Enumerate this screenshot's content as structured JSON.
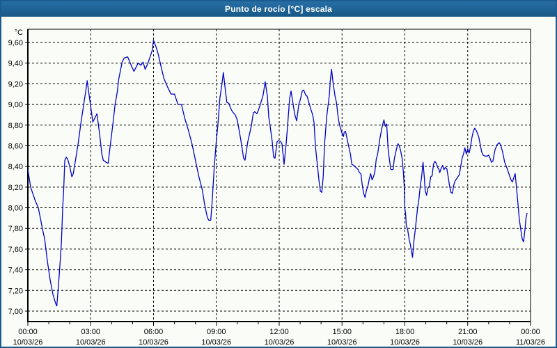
{
  "window": {
    "title": "Punto de rocío [°C] escala"
  },
  "colors": {
    "titlebar": "#1d6398",
    "titlebar_text": "#ffffff",
    "window_bg": "#fafdf7",
    "window_border": "#1a5c90",
    "grid": "#000000",
    "axis": "#000000",
    "line": "#0000c8",
    "label_text": "#000000"
  },
  "chart_data": {
    "type": "line",
    "title": "Punto de rocío [°C] escala",
    "xlabel": "",
    "ylabel": "°C",
    "y_axis_unit": "°C",
    "grid": "dashed",
    "legend": "none",
    "ylim": [
      6.9,
      9.73
    ],
    "x_range_minutes": [
      0,
      1440
    ],
    "x_minor_tick_minutes": 60,
    "y_ticks": [
      {
        "value": 9.6,
        "label": "9,60"
      },
      {
        "value": 9.4,
        "label": "9,40"
      },
      {
        "value": 9.2,
        "label": "9,20"
      },
      {
        "value": 9.0,
        "label": "9,00"
      },
      {
        "value": 8.8,
        "label": "8,80"
      },
      {
        "value": 8.6,
        "label": "8,60"
      },
      {
        "value": 8.4,
        "label": "8,40"
      },
      {
        "value": 8.2,
        "label": "8,20"
      },
      {
        "value": 8.0,
        "label": "8,00"
      },
      {
        "value": 7.8,
        "label": "7,80"
      },
      {
        "value": 7.6,
        "label": "7,60"
      },
      {
        "value": 7.4,
        "label": "7,40"
      },
      {
        "value": 7.2,
        "label": "7,20"
      },
      {
        "value": 7.0,
        "label": "7,00"
      }
    ],
    "x_ticks": [
      {
        "minutes": 0,
        "time": "00:00",
        "date": "10/03/26"
      },
      {
        "minutes": 180,
        "time": "03:00",
        "date": "10/03/26"
      },
      {
        "minutes": 360,
        "time": "06:00",
        "date": "10/03/26"
      },
      {
        "minutes": 540,
        "time": "09:00",
        "date": "10/03/26"
      },
      {
        "minutes": 720,
        "time": "12:00",
        "date": "10/03/26"
      },
      {
        "minutes": 900,
        "time": "15:00",
        "date": "10/03/26"
      },
      {
        "minutes": 1080,
        "time": "18:00",
        "date": "10/03/26"
      },
      {
        "minutes": 1260,
        "time": "21:00",
        "date": "10/03/26"
      },
      {
        "minutes": 1440,
        "time": "00:00",
        "date": "11/03/26"
      }
    ],
    "series": [
      {
        "name": "Punto de rocío [°C]",
        "points": [
          [
            0,
            8.37
          ],
          [
            8,
            8.2
          ],
          [
            20,
            8.08
          ],
          [
            30,
            8.0
          ],
          [
            36,
            7.9
          ],
          [
            42,
            7.79
          ],
          [
            48,
            7.7
          ],
          [
            56,
            7.48
          ],
          [
            64,
            7.3
          ],
          [
            72,
            7.16
          ],
          [
            80,
            7.07
          ],
          [
            83,
            7.05
          ],
          [
            88,
            7.26
          ],
          [
            92,
            7.45
          ],
          [
            96,
            7.65
          ],
          [
            100,
            8.0
          ],
          [
            103,
            8.2
          ],
          [
            106,
            8.46
          ],
          [
            110,
            8.49
          ],
          [
            114,
            8.47
          ],
          [
            120,
            8.4
          ],
          [
            126,
            8.3
          ],
          [
            130,
            8.33
          ],
          [
            136,
            8.45
          ],
          [
            144,
            8.62
          ],
          [
            152,
            8.82
          ],
          [
            160,
            9.0
          ],
          [
            166,
            9.13
          ],
          [
            170,
            9.23
          ],
          [
            176,
            9.08
          ],
          [
            180,
            8.98
          ],
          [
            186,
            8.83
          ],
          [
            192,
            8.87
          ],
          [
            198,
            8.91
          ],
          [
            206,
            8.7
          ],
          [
            212,
            8.52
          ],
          [
            216,
            8.46
          ],
          [
            224,
            8.44
          ],
          [
            230,
            8.43
          ],
          [
            236,
            8.6
          ],
          [
            244,
            8.82
          ],
          [
            250,
            9.0
          ],
          [
            256,
            9.12
          ],
          [
            260,
            9.24
          ],
          [
            270,
            9.41
          ],
          [
            276,
            9.45
          ],
          [
            286,
            9.46
          ],
          [
            296,
            9.38
          ],
          [
            304,
            9.32
          ],
          [
            316,
            9.4
          ],
          [
            324,
            9.38
          ],
          [
            330,
            9.41
          ],
          [
            336,
            9.34
          ],
          [
            344,
            9.4
          ],
          [
            350,
            9.46
          ],
          [
            356,
            9.52
          ],
          [
            360,
            9.62
          ],
          [
            368,
            9.55
          ],
          [
            374,
            9.48
          ],
          [
            380,
            9.39
          ],
          [
            390,
            9.25
          ],
          [
            400,
            9.17
          ],
          [
            410,
            9.1
          ],
          [
            420,
            9.1
          ],
          [
            430,
            9.0
          ],
          [
            440,
            9.0
          ],
          [
            450,
            8.86
          ],
          [
            460,
            8.75
          ],
          [
            470,
            8.62
          ],
          [
            480,
            8.46
          ],
          [
            490,
            8.3
          ],
          [
            500,
            8.17
          ],
          [
            506,
            8.04
          ],
          [
            514,
            7.91
          ],
          [
            518,
            7.88
          ],
          [
            524,
            7.88
          ],
          [
            528,
            8.06
          ],
          [
            534,
            8.39
          ],
          [
            540,
            8.66
          ],
          [
            544,
            8.79
          ],
          [
            550,
            9.06
          ],
          [
            556,
            9.2
          ],
          [
            560,
            9.31
          ],
          [
            566,
            9.13
          ],
          [
            570,
            9.02
          ],
          [
            576,
            9.01
          ],
          [
            580,
            8.97
          ],
          [
            586,
            8.93
          ],
          [
            594,
            8.9
          ],
          [
            600,
            8.85
          ],
          [
            610,
            8.66
          ],
          [
            618,
            8.48
          ],
          [
            622,
            8.46
          ],
          [
            630,
            8.64
          ],
          [
            640,
            8.79
          ],
          [
            646,
            8.92
          ],
          [
            650,
            8.93
          ],
          [
            656,
            8.91
          ],
          [
            660,
            8.94
          ],
          [
            666,
            9.0
          ],
          [
            674,
            9.09
          ],
          [
            680,
            9.22
          ],
          [
            686,
            9.08
          ],
          [
            690,
            8.88
          ],
          [
            694,
            8.79
          ],
          [
            700,
            8.64
          ],
          [
            704,
            8.49
          ],
          [
            708,
            8.48
          ],
          [
            714,
            8.64
          ],
          [
            718,
            8.65
          ],
          [
            724,
            8.64
          ],
          [
            728,
            8.62
          ],
          [
            734,
            8.42
          ],
          [
            740,
            8.62
          ],
          [
            744,
            8.79
          ],
          [
            750,
            9.06
          ],
          [
            754,
            9.13
          ],
          [
            760,
            9.0
          ],
          [
            764,
            8.91
          ],
          [
            770,
            8.84
          ],
          [
            776,
            9.0
          ],
          [
            780,
            9.04
          ],
          [
            786,
            9.13
          ],
          [
            790,
            9.14
          ],
          [
            796,
            9.09
          ],
          [
            800,
            9.08
          ],
          [
            810,
            8.96
          ],
          [
            816,
            8.9
          ],
          [
            820,
            8.82
          ],
          [
            824,
            8.59
          ],
          [
            830,
            8.39
          ],
          [
            834,
            8.26
          ],
          [
            838,
            8.16
          ],
          [
            842,
            8.15
          ],
          [
            846,
            8.3
          ],
          [
            850,
            8.62
          ],
          [
            856,
            8.88
          ],
          [
            864,
            9.1
          ],
          [
            866,
            9.22
          ],
          [
            870,
            9.34
          ],
          [
            874,
            9.22
          ],
          [
            880,
            9.08
          ],
          [
            884,
            9.02
          ],
          [
            890,
            8.85
          ],
          [
            894,
            8.79
          ],
          [
            900,
            8.72
          ],
          [
            904,
            8.69
          ],
          [
            906,
            8.73
          ],
          [
            910,
            8.74
          ],
          [
            916,
            8.64
          ],
          [
            924,
            8.52
          ],
          [
            928,
            8.42
          ],
          [
            934,
            8.41
          ],
          [
            940,
            8.39
          ],
          [
            946,
            8.37
          ],
          [
            950,
            8.34
          ],
          [
            954,
            8.33
          ],
          [
            958,
            8.22
          ],
          [
            962,
            8.14
          ],
          [
            966,
            8.1
          ],
          [
            970,
            8.17
          ],
          [
            974,
            8.21
          ],
          [
            978,
            8.28
          ],
          [
            982,
            8.33
          ],
          [
            986,
            8.27
          ],
          [
            990,
            8.3
          ],
          [
            994,
            8.35
          ],
          [
            998,
            8.47
          ],
          [
            1002,
            8.52
          ],
          [
            1008,
            8.66
          ],
          [
            1014,
            8.77
          ],
          [
            1020,
            8.85
          ],
          [
            1024,
            8.79
          ],
          [
            1028,
            8.81
          ],
          [
            1032,
            8.57
          ],
          [
            1036,
            8.46
          ],
          [
            1040,
            8.37
          ],
          [
            1046,
            8.37
          ],
          [
            1050,
            8.48
          ],
          [
            1056,
            8.57
          ],
          [
            1060,
            8.62
          ],
          [
            1064,
            8.6
          ],
          [
            1068,
            8.55
          ],
          [
            1072,
            8.48
          ],
          [
            1076,
            8.33
          ],
          [
            1078,
            8.22
          ],
          [
            1080,
            7.99
          ],
          [
            1082,
            7.95
          ],
          [
            1084,
            7.83
          ],
          [
            1088,
            7.79
          ],
          [
            1092,
            7.7
          ],
          [
            1096,
            7.64
          ],
          [
            1102,
            7.52
          ],
          [
            1106,
            7.68
          ],
          [
            1110,
            7.79
          ],
          [
            1116,
            7.99
          ],
          [
            1120,
            8.08
          ],
          [
            1124,
            8.21
          ],
          [
            1128,
            8.3
          ],
          [
            1132,
            8.44
          ],
          [
            1136,
            8.28
          ],
          [
            1138,
            8.17
          ],
          [
            1142,
            8.12
          ],
          [
            1146,
            8.19
          ],
          [
            1150,
            8.21
          ],
          [
            1154,
            8.3
          ],
          [
            1158,
            8.31
          ],
          [
            1162,
            8.42
          ],
          [
            1166,
            8.45
          ],
          [
            1170,
            8.43
          ],
          [
            1174,
            8.39
          ],
          [
            1178,
            8.37
          ],
          [
            1180,
            8.34
          ],
          [
            1184,
            8.38
          ],
          [
            1188,
            8.41
          ],
          [
            1192,
            8.37
          ],
          [
            1196,
            8.39
          ],
          [
            1200,
            8.38
          ],
          [
            1204,
            8.3
          ],
          [
            1208,
            8.21
          ],
          [
            1212,
            8.15
          ],
          [
            1216,
            8.14
          ],
          [
            1220,
            8.22
          ],
          [
            1224,
            8.26
          ],
          [
            1228,
            8.28
          ],
          [
            1232,
            8.3
          ],
          [
            1236,
            8.32
          ],
          [
            1240,
            8.4
          ],
          [
            1244,
            8.48
          ],
          [
            1248,
            8.52
          ],
          [
            1252,
            8.58
          ],
          [
            1256,
            8.52
          ],
          [
            1260,
            8.57
          ],
          [
            1264,
            8.53
          ],
          [
            1268,
            8.59
          ],
          [
            1272,
            8.68
          ],
          [
            1276,
            8.74
          ],
          [
            1280,
            8.77
          ],
          [
            1284,
            8.75
          ],
          [
            1288,
            8.72
          ],
          [
            1292,
            8.68
          ],
          [
            1296,
            8.61
          ],
          [
            1300,
            8.54
          ],
          [
            1304,
            8.51
          ],
          [
            1310,
            8.5
          ],
          [
            1316,
            8.5
          ],
          [
            1320,
            8.51
          ],
          [
            1324,
            8.48
          ],
          [
            1328,
            8.44
          ],
          [
            1332,
            8.45
          ],
          [
            1338,
            8.56
          ],
          [
            1344,
            8.61
          ],
          [
            1350,
            8.63
          ],
          [
            1354,
            8.61
          ],
          [
            1360,
            8.54
          ],
          [
            1366,
            8.44
          ],
          [
            1374,
            8.37
          ],
          [
            1380,
            8.31
          ],
          [
            1384,
            8.27
          ],
          [
            1388,
            8.25
          ],
          [
            1392,
            8.29
          ],
          [
            1396,
            8.33
          ],
          [
            1400,
            8.19
          ],
          [
            1404,
            8.04
          ],
          [
            1408,
            7.88
          ],
          [
            1412,
            7.79
          ],
          [
            1416,
            7.7
          ],
          [
            1420,
            7.67
          ],
          [
            1424,
            7.79
          ],
          [
            1427,
            7.9
          ],
          [
            1430,
            7.95
          ]
        ]
      }
    ]
  }
}
